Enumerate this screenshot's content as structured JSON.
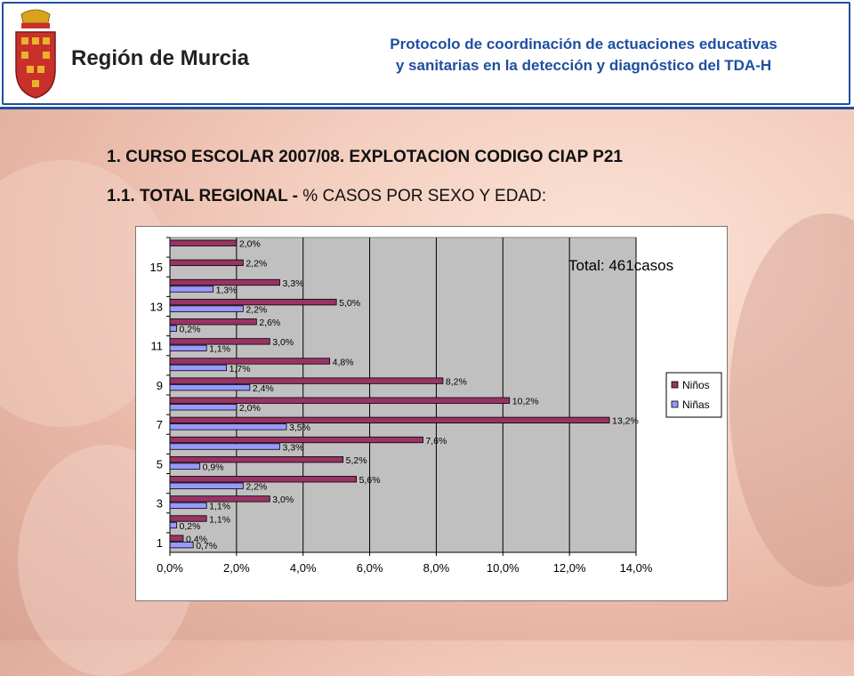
{
  "header": {
    "logo_text": "Región de Murcia",
    "title_line1": "Protocolo de coordinación de actuaciones educativas",
    "title_line2": "y sanitarias en la detección y diagnóstico del TDA-H"
  },
  "headings": {
    "h1": "1. CURSO ESCOLAR 2007/08. EXPLOTACION CODIGO CIAP P21",
    "h2_bold": "1.1. TOTAL REGIONAL - ",
    "h2_rest": "% CASOS POR SEXO Y EDAD:"
  },
  "colors": {
    "ninos": "#993366",
    "ninas": "#9999ff",
    "plot_bg": "#c0c0c0",
    "header_blue": "#1f4fa0"
  },
  "chart_data": {
    "type": "bar",
    "orientation": "horizontal",
    "annotation": "Total: 461casos",
    "categories": [
      "1",
      "2",
      "3",
      "4",
      "5",
      "6",
      "7",
      "8",
      "9",
      "10",
      "11",
      "12",
      "13",
      "14",
      "15",
      "16"
    ],
    "y_tick_labels": [
      "1",
      "3",
      "5",
      "7",
      "9",
      "11",
      "13",
      "15"
    ],
    "xlim": [
      0,
      14
    ],
    "x_ticks": [
      0,
      2,
      4,
      6,
      8,
      10,
      12,
      14
    ],
    "x_tick_labels": [
      "0,0%",
      "2,0%",
      "4,0%",
      "6,0%",
      "8,0%",
      "10,0%",
      "12,0%",
      "14,0%"
    ],
    "legend_position": "right",
    "grid": true,
    "series": [
      {
        "name": "Niños",
        "values": [
          0.4,
          1.1,
          3.0,
          5.6,
          5.2,
          7.6,
          13.2,
          10.2,
          8.2,
          4.8,
          3.0,
          2.6,
          5.0,
          3.3,
          2.2,
          2.0
        ],
        "labels": [
          "0,4%",
          "1,1%",
          "3,0%",
          "5,6%",
          "5,2%",
          "7,6%",
          "13,2%",
          "10,2%",
          "8,2%",
          "4,8%",
          "3,0%",
          "2,6%",
          "5,0%",
          "3,3%",
          "2,2%",
          "2,0%"
        ]
      },
      {
        "name": "Niñas",
        "values": [
          0.7,
          0.2,
          1.1,
          2.2,
          0.9,
          3.3,
          3.5,
          2.0,
          2.4,
          1.7,
          1.1,
          0.2,
          2.2,
          1.3,
          null,
          null
        ],
        "labels": [
          "0,7%",
          "0,2%",
          "1,1%",
          "2,2%",
          "0,9%",
          "3,3%",
          "3,5%",
          "2,0%",
          "2,4%",
          "1,7%",
          "1,1%",
          "0,2%",
          "2,2%",
          "1,3%",
          "",
          ""
        ]
      }
    ]
  }
}
